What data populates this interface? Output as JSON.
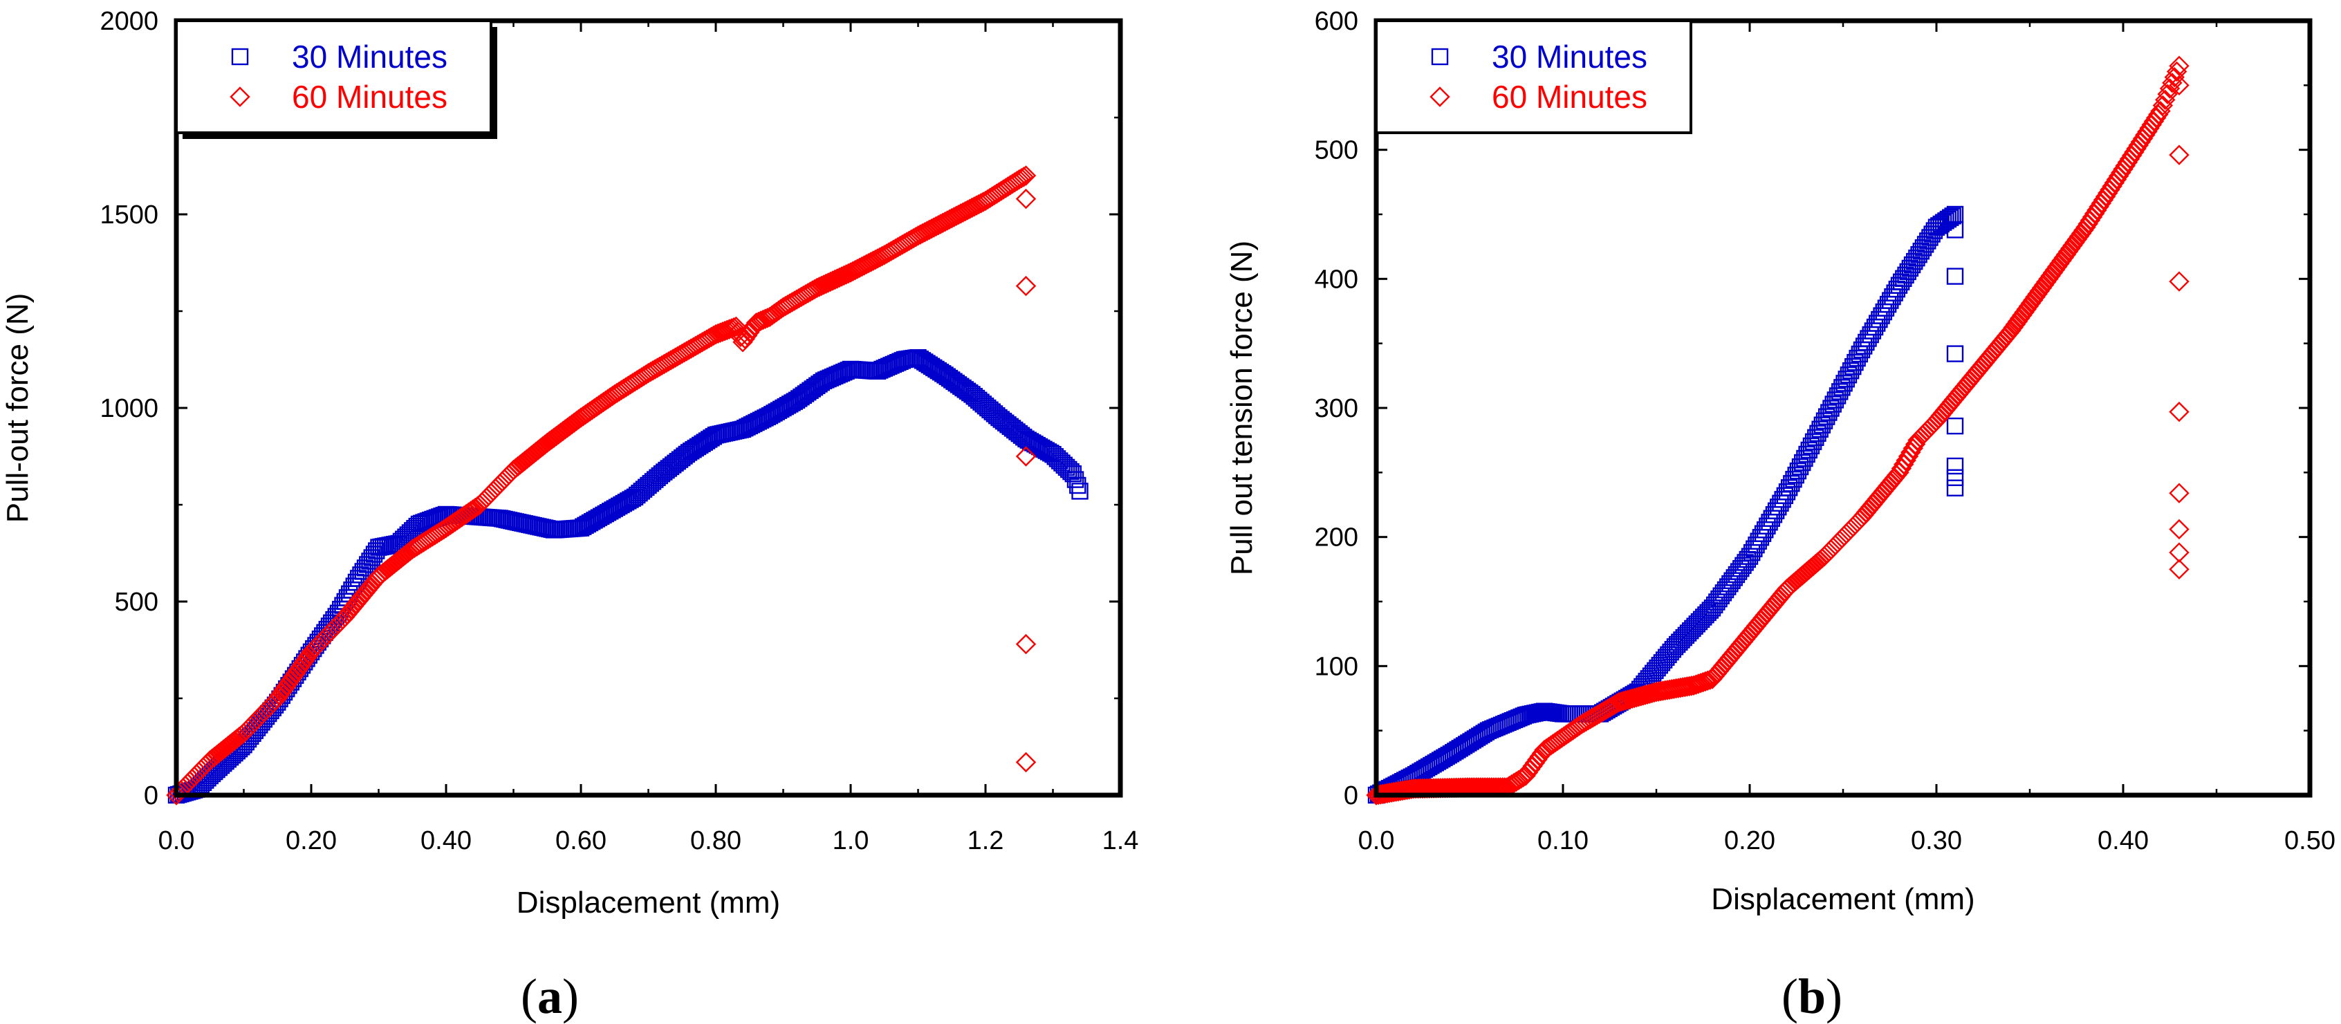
{
  "chart_data": [
    {
      "type": "scatter",
      "panel_label_open": "(",
      "panel_label": "a",
      "panel_label_close": ")",
      "xlabel": "Displacement (mm)",
      "ylabel": "Pull-out force (N)",
      "xlim": [
        0,
        1.4
      ],
      "ylim": [
        0,
        2000
      ],
      "xticks": [
        {
          "v": 0.0,
          "label": "0.0"
        },
        {
          "v": 0.2,
          "label": "0.20"
        },
        {
          "v": 0.4,
          "label": "0.40"
        },
        {
          "v": 0.6,
          "label": "0.60"
        },
        {
          "v": 0.8,
          "label": "0.80"
        },
        {
          "v": 1.0,
          "label": "1.0"
        },
        {
          "v": 1.2,
          "label": "1.2"
        },
        {
          "v": 1.4,
          "label": "1.4"
        }
      ],
      "yticks": [
        {
          "v": 0,
          "label": "0"
        },
        {
          "v": 500,
          "label": "500"
        },
        {
          "v": 1000,
          "label": "1000"
        },
        {
          "v": 1500,
          "label": "1500"
        },
        {
          "v": 2000,
          "label": "2000"
        }
      ],
      "legend_position": "top-left",
      "series": [
        {
          "name": "30 Minutes",
          "color": "#0000cc",
          "marker": "square",
          "curve": [
            [
              0,
              0
            ],
            [
              0.03,
              15
            ],
            [
              0.05,
              50
            ],
            [
              0.1,
              130
            ],
            [
              0.15,
              240
            ],
            [
              0.2,
              370
            ],
            [
              0.24,
              470
            ],
            [
              0.27,
              560
            ],
            [
              0.3,
              640
            ],
            [
              0.33,
              650
            ],
            [
              0.36,
              700
            ],
            [
              0.4,
              725
            ],
            [
              0.44,
              720
            ],
            [
              0.48,
              715
            ],
            [
              0.52,
              700
            ],
            [
              0.56,
              685
            ],
            [
              0.6,
              690
            ],
            [
              0.64,
              730
            ],
            [
              0.68,
              770
            ],
            [
              0.72,
              830
            ],
            [
              0.76,
              885
            ],
            [
              0.8,
              930
            ],
            [
              0.84,
              945
            ],
            [
              0.88,
              980
            ],
            [
              0.92,
              1020
            ],
            [
              0.96,
              1070
            ],
            [
              1.0,
              1100
            ],
            [
              1.04,
              1095
            ],
            [
              1.08,
              1125
            ],
            [
              1.1,
              1130
            ],
            [
              1.14,
              1085
            ],
            [
              1.18,
              1035
            ],
            [
              1.22,
              975
            ],
            [
              1.26,
              920
            ],
            [
              1.3,
              880
            ],
            [
              1.33,
              830
            ],
            [
              1.34,
              785
            ]
          ],
          "scatter": []
        },
        {
          "name": "60 Minutes",
          "color": "#ff0000",
          "marker": "diamond",
          "curve": [
            [
              0,
              0
            ],
            [
              0.05,
              90
            ],
            [
              0.1,
              160
            ],
            [
              0.15,
              250
            ],
            [
              0.2,
              370
            ],
            [
              0.25,
              460
            ],
            [
              0.3,
              565
            ],
            [
              0.35,
              635
            ],
            [
              0.4,
              690
            ],
            [
              0.45,
              750
            ],
            [
              0.5,
              840
            ],
            [
              0.55,
              910
            ],
            [
              0.6,
              975
            ],
            [
              0.65,
              1035
            ],
            [
              0.7,
              1090
            ],
            [
              0.75,
              1140
            ],
            [
              0.8,
              1190
            ],
            [
              0.83,
              1210
            ],
            [
              0.84,
              1170
            ],
            [
              0.86,
              1220
            ],
            [
              0.88,
              1235
            ],
            [
              0.9,
              1260
            ],
            [
              0.95,
              1310
            ],
            [
              1.0,
              1350
            ],
            [
              1.05,
              1395
            ],
            [
              1.1,
              1445
            ],
            [
              1.15,
              1490
            ],
            [
              1.2,
              1535
            ],
            [
              1.25,
              1590
            ],
            [
              1.26,
              1600
            ]
          ],
          "scatter": [
            [
              1.26,
              1540
            ],
            [
              1.26,
              1315
            ],
            [
              1.26,
              875
            ],
            [
              1.26,
              390
            ],
            [
              1.26,
              85
            ]
          ]
        }
      ]
    },
    {
      "type": "scatter",
      "panel_label_open": "(",
      "panel_label": "b",
      "panel_label_close": ")",
      "xlabel": "Displacement (mm)",
      "ylabel": "Pull out tension force (N)",
      "xlim": [
        0,
        0.5
      ],
      "ylim": [
        0,
        600
      ],
      "xticks": [
        {
          "v": 0.0,
          "label": "0.0"
        },
        {
          "v": 0.1,
          "label": "0.10"
        },
        {
          "v": 0.2,
          "label": "0.20"
        },
        {
          "v": 0.3,
          "label": "0.30"
        },
        {
          "v": 0.4,
          "label": "0.40"
        },
        {
          "v": 0.5,
          "label": "0.50"
        }
      ],
      "yticks": [
        {
          "v": 0,
          "label": "0"
        },
        {
          "v": 100,
          "label": "100"
        },
        {
          "v": 200,
          "label": "200"
        },
        {
          "v": 300,
          "label": "300"
        },
        {
          "v": 400,
          "label": "400"
        },
        {
          "v": 500,
          "label": "500"
        },
        {
          "v": 600,
          "label": "600"
        }
      ],
      "legend_position": "top-left",
      "series": [
        {
          "name": "30 Minutes",
          "color": "#0000cc",
          "marker": "square",
          "curve": [
            [
              0,
              0
            ],
            [
              0.02,
              15
            ],
            [
              0.04,
              32
            ],
            [
              0.06,
              50
            ],
            [
              0.08,
              62
            ],
            [
              0.09,
              65
            ],
            [
              0.1,
              63
            ],
            [
              0.12,
              63
            ],
            [
              0.14,
              80
            ],
            [
              0.16,
              115
            ],
            [
              0.18,
              145
            ],
            [
              0.2,
              185
            ],
            [
              0.22,
              235
            ],
            [
              0.24,
              290
            ],
            [
              0.26,
              345
            ],
            [
              0.28,
              395
            ],
            [
              0.3,
              440
            ],
            [
              0.31,
              450
            ]
          ],
          "scatter": [
            [
              0.31,
              438
            ],
            [
              0.31,
              402
            ],
            [
              0.31,
              342
            ],
            [
              0.31,
              286
            ],
            [
              0.31,
              255
            ],
            [
              0.31,
              246
            ],
            [
              0.31,
              238
            ]
          ]
        },
        {
          "name": "60 Minutes",
          "color": "#ff0000",
          "marker": "diamond",
          "curve": [
            [
              0,
              0
            ],
            [
              0.02,
              5
            ],
            [
              0.05,
              6
            ],
            [
              0.07,
              6
            ],
            [
              0.08,
              15
            ],
            [
              0.09,
              35
            ],
            [
              0.11,
              55
            ],
            [
              0.13,
              72
            ],
            [
              0.15,
              80
            ],
            [
              0.17,
              85
            ],
            [
              0.18,
              90
            ],
            [
              0.2,
              125
            ],
            [
              0.22,
              160
            ],
            [
              0.24,
              185
            ],
            [
              0.26,
              215
            ],
            [
              0.28,
              250
            ],
            [
              0.29,
              275
            ],
            [
              0.3,
              290
            ],
            [
              0.32,
              325
            ],
            [
              0.34,
              360
            ],
            [
              0.36,
              400
            ],
            [
              0.38,
              440
            ],
            [
              0.4,
              485
            ],
            [
              0.42,
              530
            ],
            [
              0.43,
              565
            ]
          ],
          "scatter": [
            [
              0.43,
              550
            ],
            [
              0.43,
              496
            ],
            [
              0.43,
              398
            ],
            [
              0.43,
              297
            ],
            [
              0.43,
              234
            ],
            [
              0.43,
              206
            ],
            [
              0.43,
              188
            ],
            [
              0.43,
              175
            ]
          ]
        }
      ]
    }
  ]
}
